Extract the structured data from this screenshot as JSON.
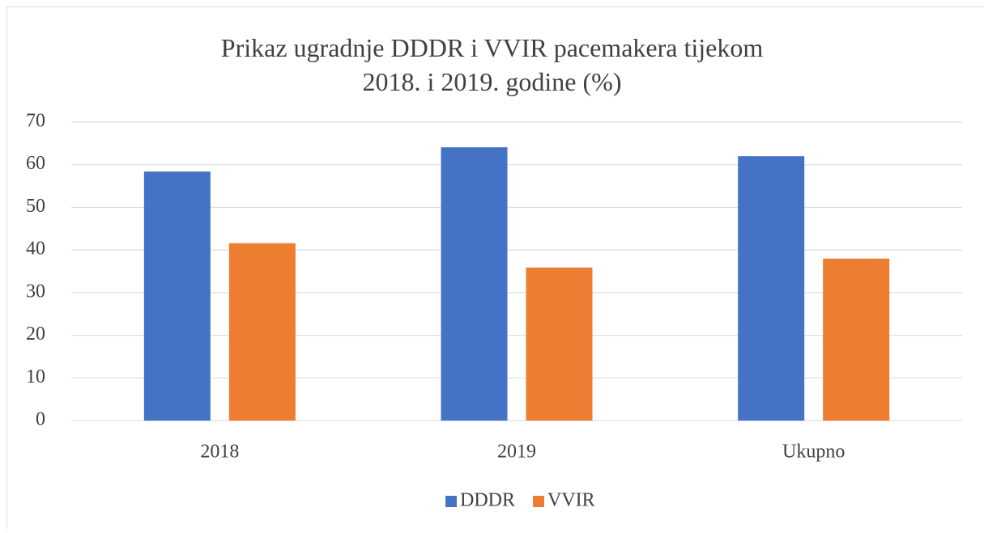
{
  "chart_data": {
    "type": "bar",
    "title": "Prikaz ugradnje DDDR i VVIR pacemakera tijekom 2018. i 2019. godine (%)",
    "categories": [
      "2018",
      "2019",
      "Ukupno"
    ],
    "series": [
      {
        "name": "DDDR",
        "color": "#4472c4",
        "values": [
          58.4,
          64.1,
          62.0
        ]
      },
      {
        "name": "VVIR",
        "color": "#ed7d31",
        "values": [
          41.6,
          35.9,
          38.0
        ]
      }
    ],
    "ylim": [
      0,
      70
    ],
    "yticks": [
      0,
      10,
      20,
      30,
      40,
      50,
      60,
      70
    ],
    "grid": true,
    "legend": "bottom"
  }
}
